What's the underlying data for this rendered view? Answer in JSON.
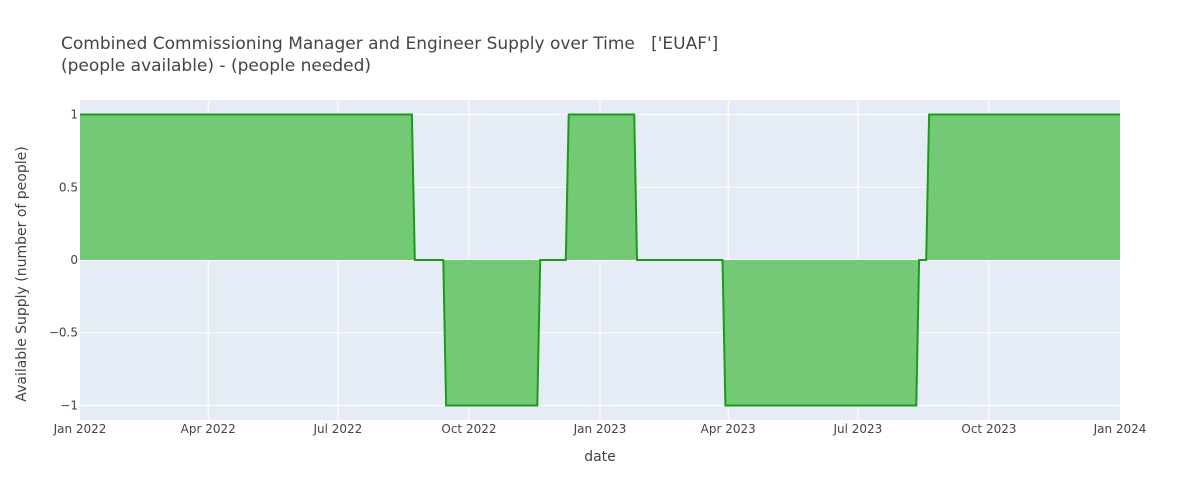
{
  "chart_data": {
    "type": "area",
    "title": "Combined Commissioning Manager and Engineer Supply over Time   ['EUAF']",
    "subtitle": "(people available) - (people needed)",
    "xlabel": "date",
    "ylabel": "Available Supply (number of people)",
    "xlim": [
      "2022-01-01",
      "2024-01-01"
    ],
    "ylim": [
      -1.1,
      1.1
    ],
    "x_ticks": [
      {
        "date": "2022-01-01",
        "label": "Jan 2022"
      },
      {
        "date": "2022-04-01",
        "label": "Apr 2022"
      },
      {
        "date": "2022-07-01",
        "label": "Jul 2022"
      },
      {
        "date": "2022-10-01",
        "label": "Oct 2022"
      },
      {
        "date": "2023-01-01",
        "label": "Jan 2023"
      },
      {
        "date": "2023-04-01",
        "label": "Apr 2023"
      },
      {
        "date": "2023-07-01",
        "label": "Jul 2023"
      },
      {
        "date": "2023-10-01",
        "label": "Oct 2023"
      },
      {
        "date": "2024-01-01",
        "label": "Jan 2024"
      }
    ],
    "y_ticks": [
      {
        "value": 1,
        "label": "1"
      },
      {
        "value": 0.5,
        "label": "0.5"
      },
      {
        "value": 0,
        "label": "0"
      },
      {
        "value": -0.5,
        "label": "−0.5"
      },
      {
        "value": -1,
        "label": "−1"
      }
    ],
    "grid": true,
    "colors": {
      "line": "#1a9c1a",
      "fill": "#74c974",
      "plot_bg": "#e5ecf6",
      "grid": "#ffffff"
    },
    "series": [
      {
        "x": [
          "2022-01-01",
          "2022-08-22",
          "2022-08-24",
          "2022-09-13",
          "2022-09-15",
          "2022-11-18",
          "2022-11-20",
          "2022-12-08",
          "2022-12-10",
          "2023-01-25",
          "2023-01-27",
          "2023-03-28",
          "2023-03-30",
          "2023-08-11",
          "2023-08-13",
          "2023-08-18",
          "2023-08-20",
          "2024-01-01"
        ],
        "y": [
          1,
          1,
          0,
          0,
          -1,
          -1,
          0,
          0,
          1,
          1,
          0,
          0,
          -1,
          -1,
          0,
          0,
          1,
          1
        ]
      }
    ]
  }
}
